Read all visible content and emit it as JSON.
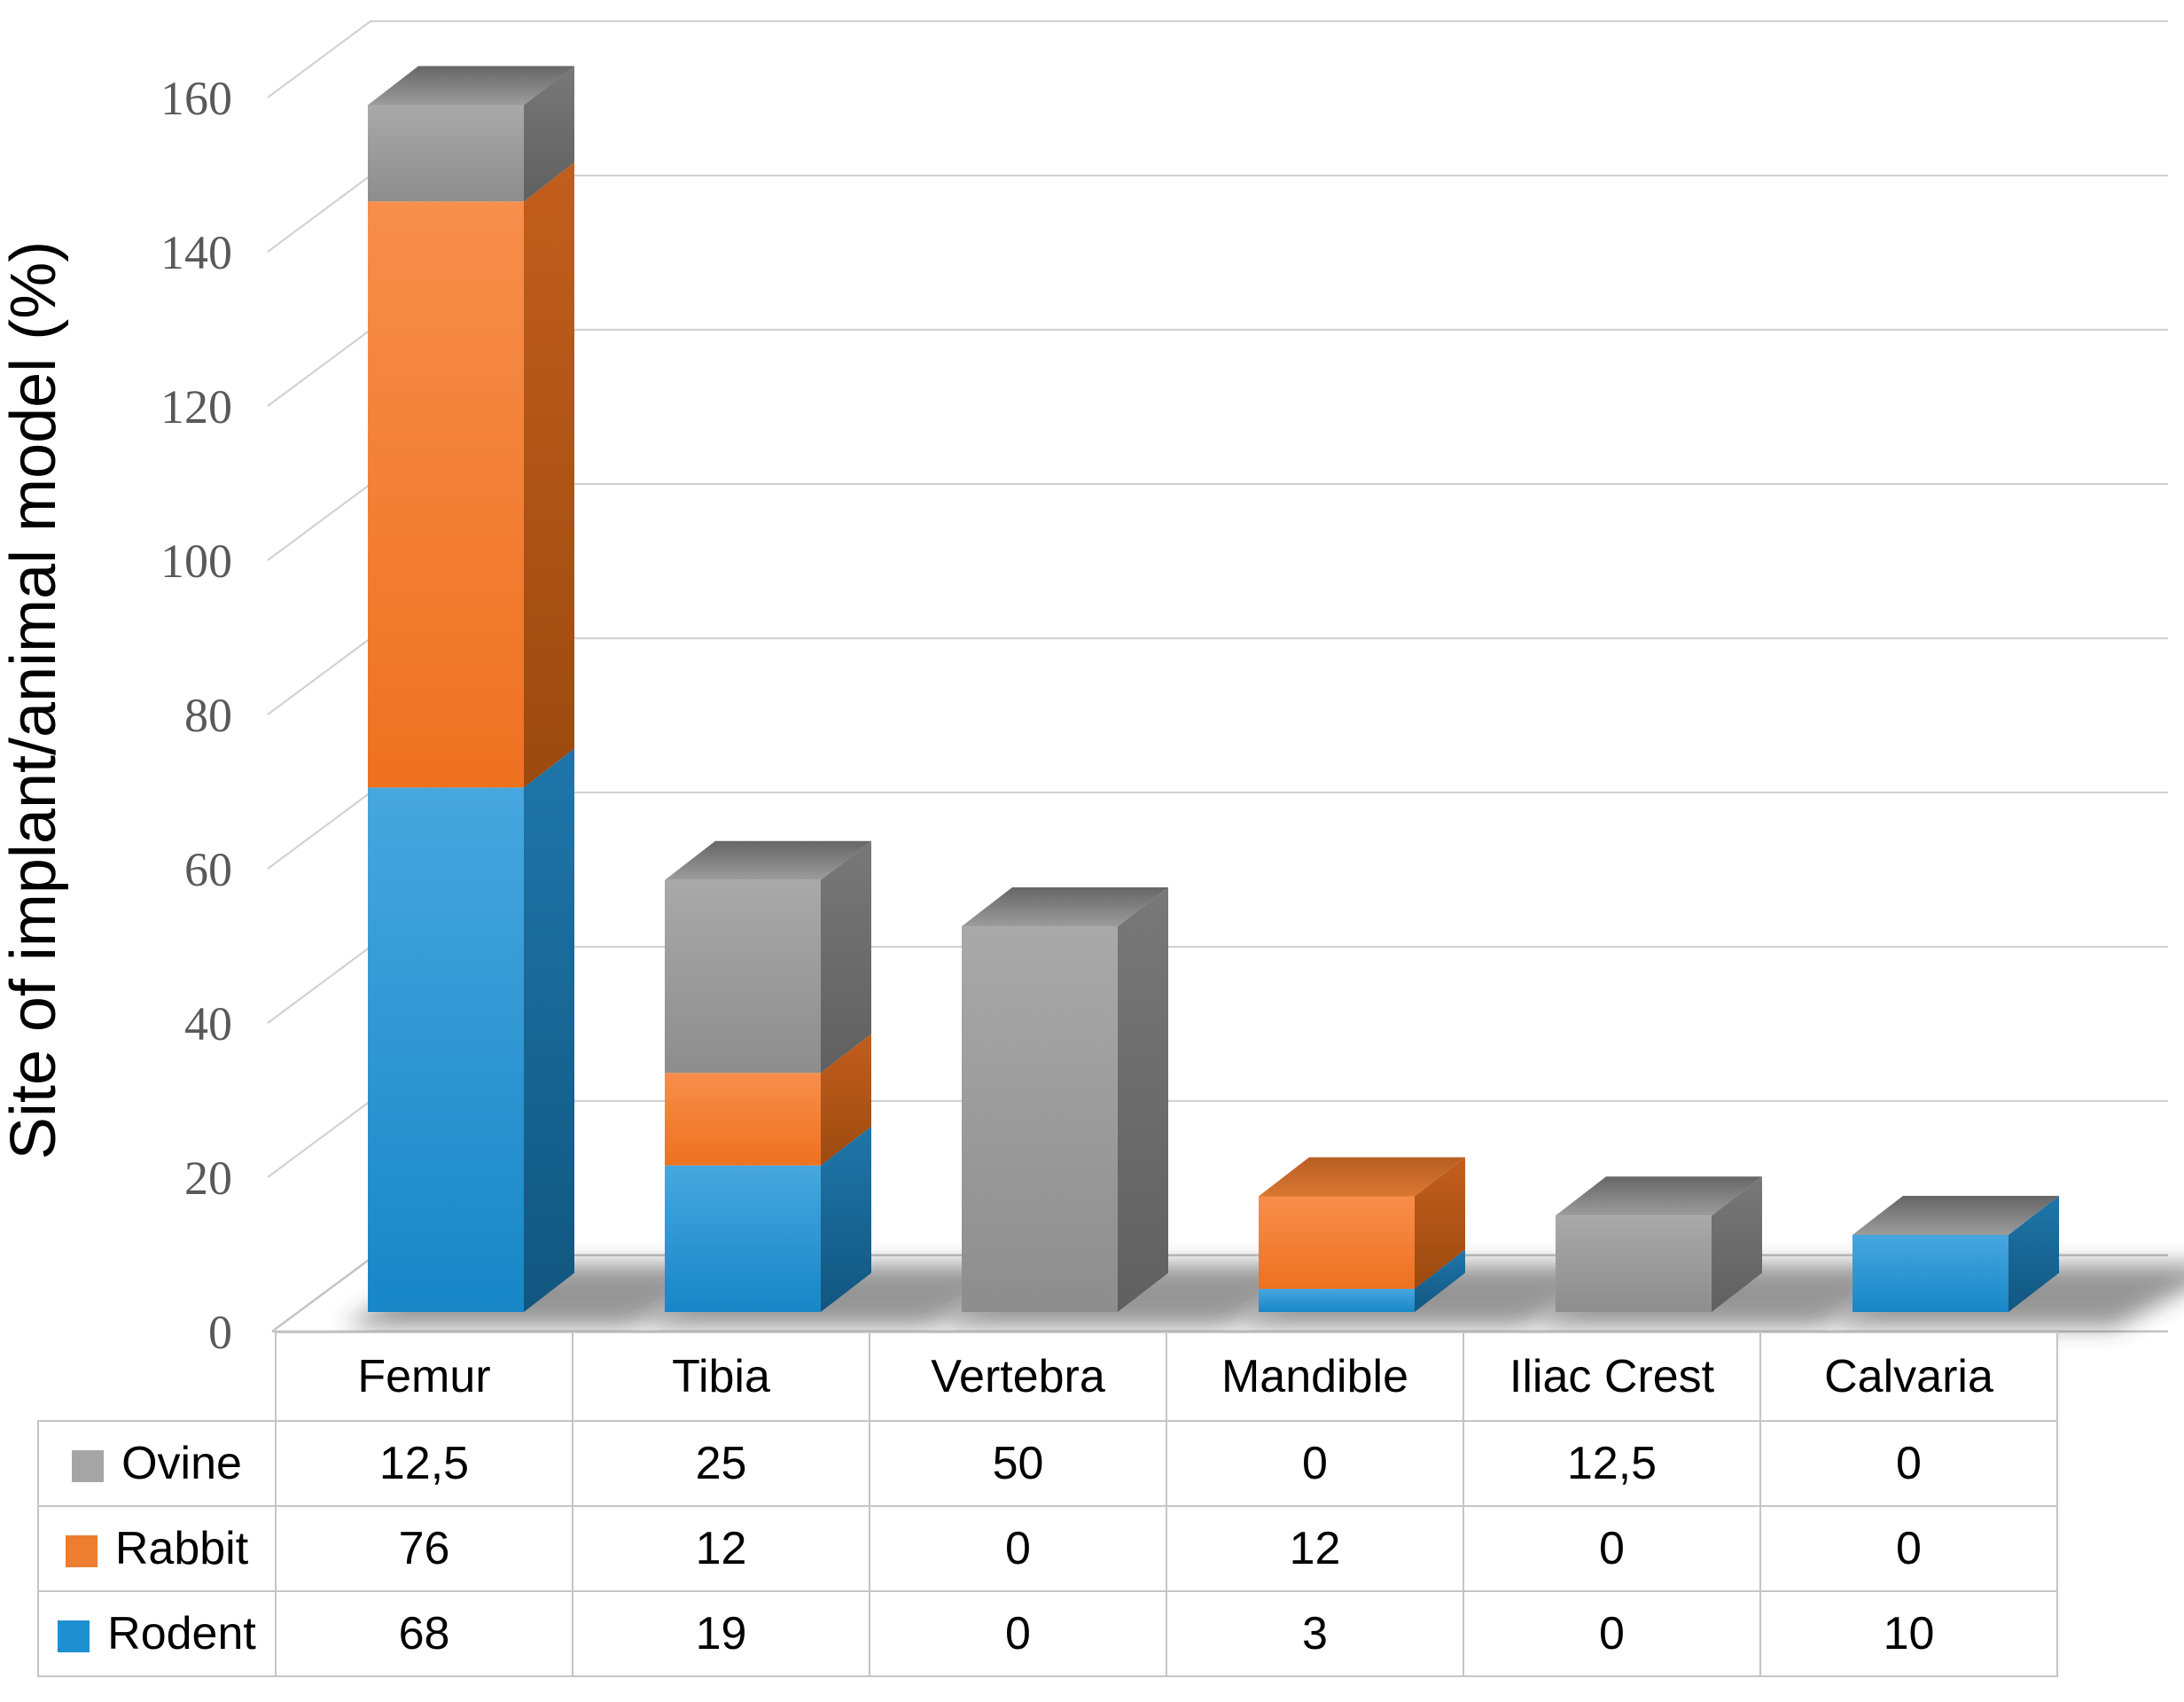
{
  "chart_data": {
    "type": "bar",
    "variant": "3d-stacked-column",
    "title": "",
    "xlabel": "",
    "ylabel": "Site of implant/animal model (%)",
    "ylim": [
      0,
      160
    ],
    "yticks": [
      0,
      20,
      40,
      60,
      80,
      100,
      120,
      140,
      160
    ],
    "grid": true,
    "legend_position": "table-left",
    "categories": [
      "Femur",
      "Tibia",
      "Vertebra",
      "Mandible",
      "Iliac Crest",
      "Calvaria"
    ],
    "stack_order_bottom_to_top": [
      "Rodent",
      "Rabbit",
      "Ovine"
    ],
    "series": [
      {
        "name": "Ovine",
        "color": "#A5A5A5",
        "values": [
          12.5,
          25,
          50,
          0,
          12.5,
          0
        ]
      },
      {
        "name": "Rabbit",
        "color": "#ED7D31",
        "values": [
          76,
          12,
          0,
          12,
          0,
          0
        ]
      },
      {
        "name": "Rodent",
        "color": "#1E8FD0",
        "values": [
          68,
          19,
          0,
          3,
          0,
          10
        ]
      }
    ],
    "cap_colors_by_category": [
      "gray",
      "gray",
      "gray",
      "orange",
      "gray",
      "gray"
    ]
  },
  "palette": {
    "Rodent": {
      "front_top": "#47A7DE",
      "front_bottom": "#1786C7",
      "side_top": "#1F76AA",
      "side_bottom": "#115680"
    },
    "Rabbit": {
      "front_top": "#F78E4B",
      "front_bottom": "#EE7120",
      "side_top": "#C25E1D",
      "side_bottom": "#9C4A10"
    },
    "Ovine": {
      "front_top": "#A9A9A9",
      "front_bottom": "#8D8D8D",
      "side_top": "#787878",
      "side_bottom": "#606060"
    },
    "caps": {
      "gray": {
        "top": "#666666",
        "bottom": "#9C9C9C"
      },
      "orange": {
        "top": "#B85E23",
        "bottom": "#D97731"
      }
    },
    "grid_color": "#D2D2D2",
    "floor_color": "#C4C4C4",
    "tick_color": "#595959",
    "shadow_color": "#2E2E2E"
  },
  "table": {
    "columns": [
      "Femur",
      "Tibia",
      "Vertebra",
      "Mandible",
      "Iliac Crest",
      "Calvaria"
    ],
    "rows": [
      {
        "label": "Ovine",
        "swatch_color": "#A5A5A5",
        "values": [
          "12,5",
          "25",
          "50",
          "0",
          "12,5",
          "0"
        ]
      },
      {
        "label": "Rabbit",
        "swatch_color": "#ED7D31",
        "values": [
          "76",
          "12",
          "0",
          "12",
          "0",
          "0"
        ]
      },
      {
        "label": "Rodent",
        "swatch_color": "#1E8FD0",
        "values": [
          "68",
          "19",
          "0",
          "3",
          "0",
          "10"
        ]
      }
    ]
  }
}
